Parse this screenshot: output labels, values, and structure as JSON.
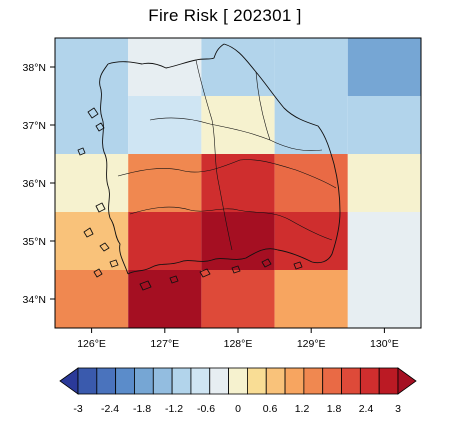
{
  "title": "Fire Risk [ 202301 ]",
  "chart_data": {
    "type": "heatmap",
    "title": "Fire Risk [ 202301 ]",
    "x_ticks": [
      "126°E",
      "127°E",
      "128°E",
      "129°E",
      "130°E"
    ],
    "y_ticks": [
      "38°N",
      "37°N",
      "36°N",
      "35°N",
      "34°N"
    ],
    "x_centers": [
      126,
      127,
      128,
      129,
      130
    ],
    "y_centers": [
      38,
      37,
      36,
      35,
      34
    ],
    "xlim": [
      125.5,
      130.5
    ],
    "ylim": [
      33.5,
      38.5
    ],
    "grid": [
      [
        -0.9,
        -0.4,
        -0.9,
        -0.9,
        -1.6
      ],
      [
        -0.9,
        -0.6,
        0.1,
        -0.9,
        -0.9
      ],
      [
        0.1,
        1.4,
        2.3,
        1.6,
        0.1
      ],
      [
        0.7,
        2.2,
        3.0,
        2.2,
        -0.4
      ],
      [
        1.3,
        2.9,
        1.9,
        1.0,
        -0.4
      ]
    ],
    "colorbar": {
      "min": -3,
      "max": 3,
      "tick_labels": [
        "-3",
        "-2.4",
        "-1.8",
        "-1.2",
        "-0.6",
        "0",
        "0.6",
        "1.2",
        "1.8",
        "2.4",
        "3"
      ],
      "colors": [
        "#2b3a99",
        "#3a5aad",
        "#4a73bd",
        "#5b8cca",
        "#76a6d4",
        "#93bde0",
        "#b2d4eb",
        "#cfe5f3",
        "#e7eef2",
        "#f6f2cf",
        "#f9dd95",
        "#f9c27a",
        "#f7a560",
        "#f08850",
        "#e96a45",
        "#de4a39",
        "#cf2e2e",
        "#bb1a24",
        "#a50f22"
      ]
    }
  }
}
